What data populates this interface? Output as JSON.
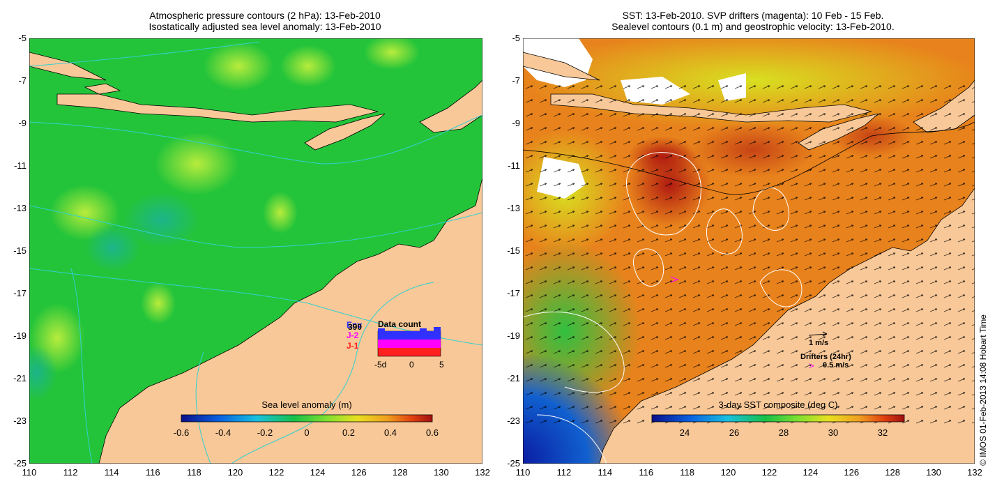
{
  "left_panel": {
    "title_line1": "Atmospheric pressure contours (2 hPa): 13-Feb-2010",
    "title_line2": "Isostatically adjusted sea level anomaly: 13-Feb-2010",
    "colorbar": {
      "label": "Sea level anomaly (m)",
      "ticks": [
        "-0.6",
        "-0.4",
        "-0.2",
        "0",
        "0.2",
        "0.4",
        "0.6"
      ]
    },
    "inset": {
      "title": "Data count",
      "legend": [
        {
          "label": "Env",
          "color": "#3030ff"
        },
        {
          "label": "J-2",
          "color": "#ff00ff"
        },
        {
          "label": "J-1",
          "color": "#ff2020"
        }
      ],
      "overlap_label": "390",
      "xticks": [
        "-5d",
        "0",
        "5"
      ]
    }
  },
  "right_panel": {
    "title_line1": "SST: 13-Feb-2010. SVP drifters (magenta): 10 Feb - 15 Feb.",
    "title_line2": "Sealevel contours (0.1 m) and geostrophic velocity: 13-Feb-2010.",
    "colorbar": {
      "label": "3-day SST composite (deg C)",
      "ticks": [
        "24",
        "26",
        "28",
        "30",
        "32"
      ]
    },
    "velocity_key": "1 m/s",
    "drifter_key_title": "Drifters (24hr)",
    "drifter_key_value": "0.5 m/s",
    "drifter_key_marker": ">"
  },
  "axes": {
    "lat_ticks": [
      "-5",
      "-7",
      "-9",
      "-11",
      "-13",
      "-15",
      "-17",
      "-19",
      "-21",
      "-23",
      "-25"
    ],
    "lon_ticks": [
      "110",
      "112",
      "114",
      "116",
      "118",
      "120",
      "122",
      "124",
      "126",
      "128",
      "130",
      "132"
    ],
    "lon_range": [
      110,
      132
    ],
    "lat_range": [
      -25,
      -5
    ]
  },
  "colors": {
    "land": "#f8c898",
    "sla_ocean": "#22c83c",
    "sst_ocean": "#e8801a",
    "contour_pressure": "#30d0d0",
    "drifter": "#ff00ff"
  },
  "copyright": "© IMOS 01-Feb-2013 14:08 Hobart Time"
}
